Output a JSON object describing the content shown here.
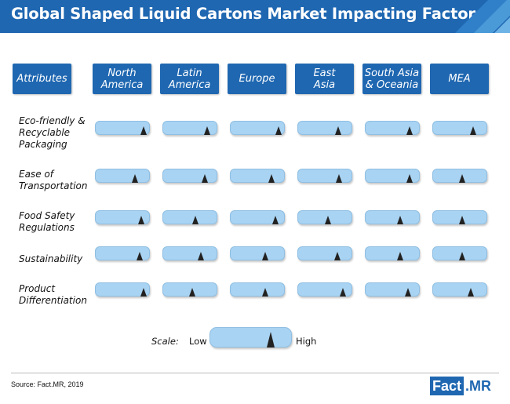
{
  "title": "Global Shaped Liquid Cartons Market Impacting Factors",
  "source": "Source: Fact.MR, 2019",
  "logo": {
    "part1": "Fact",
    "part2": ".MR"
  },
  "colors": {
    "header": "#1f67b1",
    "gauge": "#a9d3f2",
    "marker": "#222222"
  },
  "chart_data": {
    "type": "table",
    "header_attributes": "Attributes",
    "regions": [
      "North\nAmerica",
      "Latin\nAmerica",
      "Europe",
      "East\nAsia",
      "South Asia\n& Oceania",
      "MEA"
    ],
    "scale": {
      "label": "Scale:",
      "low": "Low",
      "high": "High"
    },
    "attributes": [
      {
        "name": "Eco-friendly &\nRecyclable\nPackaging",
        "levels": [
          0.9,
          0.82,
          0.9,
          0.75,
          0.82,
          0.75
        ]
      },
      {
        "name": "Ease of\nTransportation",
        "levels": [
          0.74,
          0.78,
          0.76,
          0.76,
          0.82,
          0.55
        ]
      },
      {
        "name": "Food Safety\nRegulations",
        "levels": [
          0.86,
          0.6,
          0.84,
          0.56,
          0.65,
          0.55
        ]
      },
      {
        "name": "Sustainability",
        "levels": [
          0.82,
          0.7,
          0.65,
          0.74,
          0.65,
          0.55
        ]
      },
      {
        "name": "Product\nDifferentiation",
        "levels": [
          0.9,
          0.55,
          0.65,
          0.84,
          0.8,
          0.7
        ]
      }
    ]
  }
}
